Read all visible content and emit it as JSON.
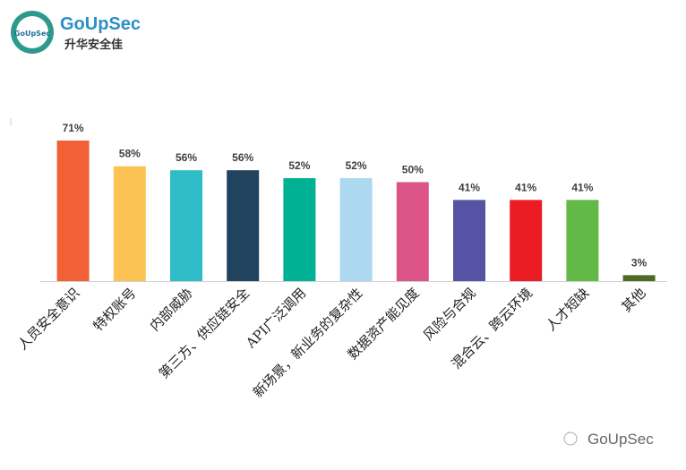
{
  "logo": {
    "name": "GoUpSec",
    "tagline": "升华安全佳"
  },
  "watermark": "GoUpSec",
  "chart_data": {
    "type": "bar",
    "categories": [
      "人员安全意识",
      "特权账号",
      "内部威胁",
      "第三方、供应链安全",
      "API广泛调用",
      "新场景，新业务的复杂性",
      "数据资产能见度",
      "风险与合规",
      "混合云、跨云环境",
      "人才短缺",
      "其他"
    ],
    "values": [
      71,
      58,
      56,
      56,
      52,
      52,
      50,
      41,
      41,
      41,
      3
    ],
    "value_labels": [
      "71%",
      "58%",
      "56%",
      "56%",
      "52%",
      "52%",
      "50%",
      "41%",
      "41%",
      "41%",
      "3%"
    ],
    "colors": [
      "#f26135",
      "#fdc254",
      "#2ebdc6",
      "#22435e",
      "#00b193",
      "#acd9f0",
      "#dc5488",
      "#5653a5",
      "#eb1c24",
      "#62b946",
      "#4d6b24"
    ]
  }
}
